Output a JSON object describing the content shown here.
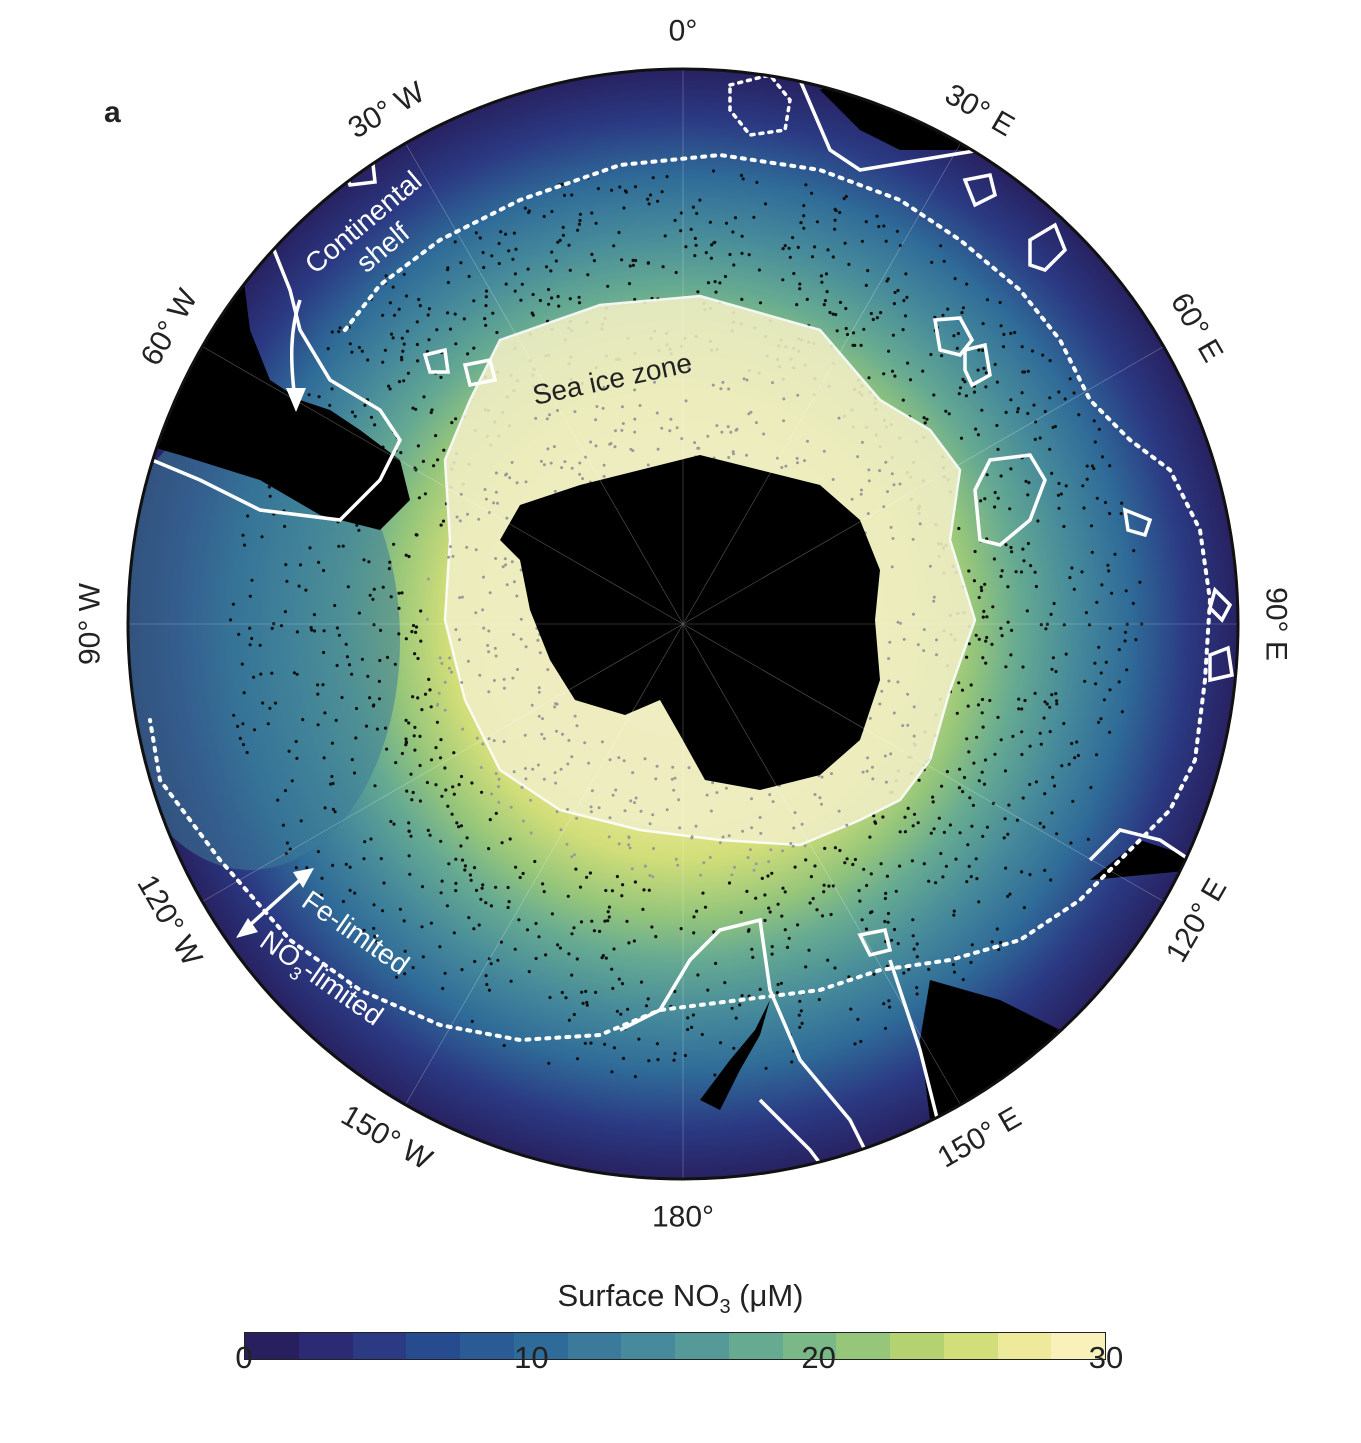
{
  "figure": {
    "panel_label": "a",
    "longitude_labels": [
      {
        "text": "0°",
        "lon": 0
      },
      {
        "text": "30° E",
        "lon": 30
      },
      {
        "text": "60° E",
        "lon": 60
      },
      {
        "text": "90° E",
        "lon": 90
      },
      {
        "text": "120° E",
        "lon": 120
      },
      {
        "text": "150° E",
        "lon": 150
      },
      {
        "text": "180°",
        "lon": 180
      },
      {
        "text": "150° W",
        "lon": -150
      },
      {
        "text": "120° W",
        "lon": -120
      },
      {
        "text": "90° W",
        "lon": -90
      },
      {
        "text": "60° W",
        "lon": -60
      },
      {
        "text": "30° W",
        "lon": -30
      }
    ],
    "annotations": {
      "continental_shelf_line1": "Continental",
      "continental_shelf_line2": "shelf",
      "sea_ice_zone": "Sea ice zone",
      "fe_limited": "Fe-limited",
      "no3_limited_prefix": "NO",
      "no3_limited_sub": "3",
      "no3_limited_suffix": "-limited"
    },
    "colorbar": {
      "title_prefix": "Surface NO",
      "title_sub": "3",
      "title_suffix": " (μM)",
      "min": 0,
      "max": 30,
      "ticks": [
        {
          "text": "0",
          "value": 0
        },
        {
          "text": "10",
          "value": 10
        },
        {
          "text": "20",
          "value": 20
        },
        {
          "text": "30",
          "value": 30
        }
      ],
      "colors": [
        "#271f5e",
        "#2c2a72",
        "#2b3a83",
        "#274b8f",
        "#2a5b95",
        "#2f6b98",
        "#3b7a9a",
        "#468a9b",
        "#559a99",
        "#66aa92",
        "#7ab987",
        "#96c67a",
        "#b4d26f",
        "#d2de79",
        "#eeea9c",
        "#f8f2ba"
      ]
    },
    "colors": {
      "land": "#000000",
      "contour": "#ffffff",
      "float_tracks_ice": "#9a9a9a",
      "float_tracks_open": "#111111"
    }
  }
}
